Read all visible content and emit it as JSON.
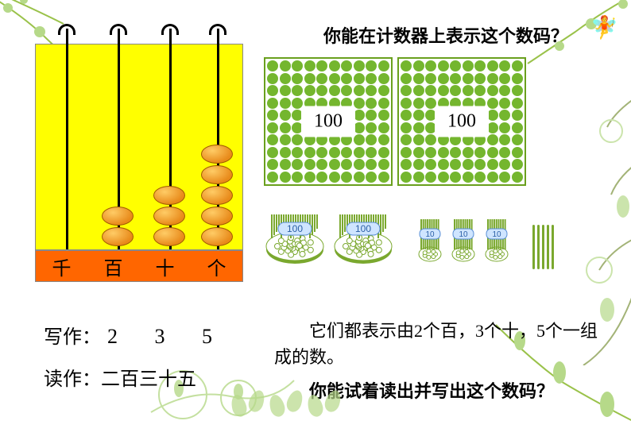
{
  "colors": {
    "abacus_bg": "#ffff00",
    "abacus_base": "#ff6600",
    "bead": "#e88a1a",
    "dot_green": "#74b62e",
    "bundle_green": "#7aa82e",
    "bundle_white": "#ffffff"
  },
  "abacus": {
    "columns": [
      "千",
      "百",
      "十",
      "个"
    ],
    "bead_counts": [
      0,
      2,
      3,
      5
    ]
  },
  "question1": "你能在计数器上表示这个数码？",
  "dot_grids": {
    "count": 2,
    "per_side": 10,
    "label": "100"
  },
  "bundles": {
    "hundreds": {
      "count": 2,
      "label": "100"
    },
    "tens": {
      "count": 3,
      "label": "10"
    },
    "ones": {
      "count": 5
    }
  },
  "write": {
    "label": "写作：",
    "digits": "2 3 5"
  },
  "read": {
    "label": "读作：",
    "value": "二百三十五"
  },
  "description": "它们都表示由2个百，3个十，5个一组成的数。",
  "question2": "你能试着读出并写出这个数码？",
  "fonts": {
    "body_family": "SimSun",
    "question_size_pt": 18,
    "label_size_pt": 20
  }
}
